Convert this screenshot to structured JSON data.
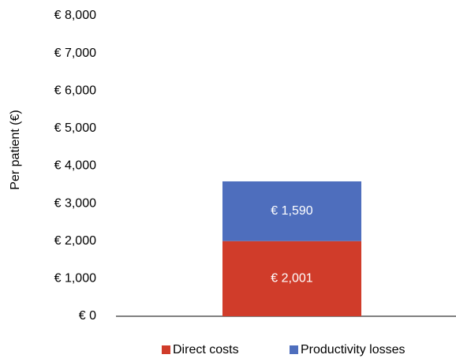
{
  "chart_data": {
    "type": "bar",
    "stacked": true,
    "y_label": "Per patient (€)",
    "categories": [
      null
    ],
    "series": [
      {
        "name": "Direct costs",
        "color": "#d03c2a",
        "values": [
          2001
        ],
        "value_labels": [
          "€ 2,001"
        ]
      },
      {
        "name": "Productivity losses",
        "color": "#4e6ebd",
        "values": [
          1590
        ],
        "value_labels": [
          "€ 1,590"
        ]
      }
    ],
    "ylim": [
      0,
      8000
    ],
    "yticks": [
      {
        "value": 0,
        "label": "€ 0"
      },
      {
        "value": 1000,
        "label": "€ 1,000"
      },
      {
        "value": 2000,
        "label": "€ 2,000"
      },
      {
        "value": 3000,
        "label": "€ 3,000"
      },
      {
        "value": 4000,
        "label": "€ 4,000"
      },
      {
        "value": 5000,
        "label": "€ 5,000"
      },
      {
        "value": 6000,
        "label": "€ 6,000"
      },
      {
        "value": 7000,
        "label": "€ 7,000"
      },
      {
        "value": 8000,
        "label": "€ 8,000"
      }
    ],
    "grid": false,
    "legend": "bottom"
  }
}
